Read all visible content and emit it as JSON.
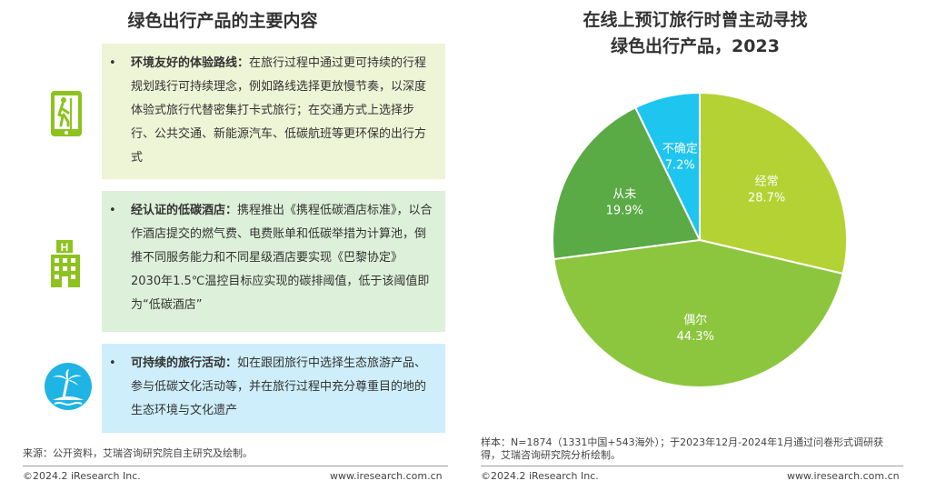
{
  "left": {
    "title": "绿色出行产品的主要内容",
    "cards": [
      {
        "heading": "环境友好的体验路线：",
        "body": "在旅行过程中通过更可持续的行程规划践行可持续理念，例如路线选择更放慢节奏，以深度体验式旅行代替密集打卡式旅行；在交通方式上选择步行、公共交通、新能源汽车、低碳航班等更环保的出行方式",
        "icon": "hiking-route-icon",
        "bg": "#eef4d6"
      },
      {
        "heading": "经认证的低碳酒店：",
        "body": "携程推出《携程低碳酒店标准》，以合作酒店提交的燃气费、电费账单和低碳举措为计算池，倒推不同服务能力和不同星级酒店要实现《巴黎协定》2030年1.5℃温控目标应实现的碳排阈值，低于该阈值即为“低碳酒店”",
        "icon": "hotel-building-icon",
        "bg": "#ddf0d9"
      },
      {
        "heading": "可持续的旅行活动：",
        "body": "如在跟团旅行中选择生态旅游产品、参与低碳文化活动等，并在旅行过程中充分尊重目的地的生态环境与文化遗产",
        "icon": "island-palm-icon",
        "bg": "#cdeefa"
      }
    ],
    "source": "来源：公开资料，艾瑞咨询研究院自主研究及绘制。",
    "copyright": "©2024.2 iResearch Inc.",
    "site": "www.iresearch.com.cn"
  },
  "right": {
    "title_line1": "在线上预订旅行时曾主动寻找",
    "title_line2": "绿色出行产品，2023",
    "note": "样本：N=1874（1331中国+543海外）；于2023年12月-2024年1月通过问卷形式调研获得，艾瑞咨询研究院分析绘制。",
    "copyright": "©2024.2 iResearch Inc.",
    "site": "www.iresearch.com.cn"
  },
  "colors": {
    "accent_green": "#8dc21f",
    "icon_circle": "#1fb4e3"
  },
  "chart_data": {
    "type": "pie",
    "title": "在线上预订旅行时曾主动寻找绿色出行产品，2023",
    "slices": [
      {
        "label": "经常",
        "value": 28.7,
        "display": "28.7%",
        "color": "#b4d233"
      },
      {
        "label": "偶尔",
        "value": 44.3,
        "display": "44.3%",
        "color": "#8cc63e"
      },
      {
        "label": "从未",
        "value": 19.9,
        "display": "19.9%",
        "color": "#5aaa46"
      },
      {
        "label": "不确定",
        "value": 7.2,
        "display": "7.2%",
        "color": "#1ec5ef"
      }
    ]
  }
}
